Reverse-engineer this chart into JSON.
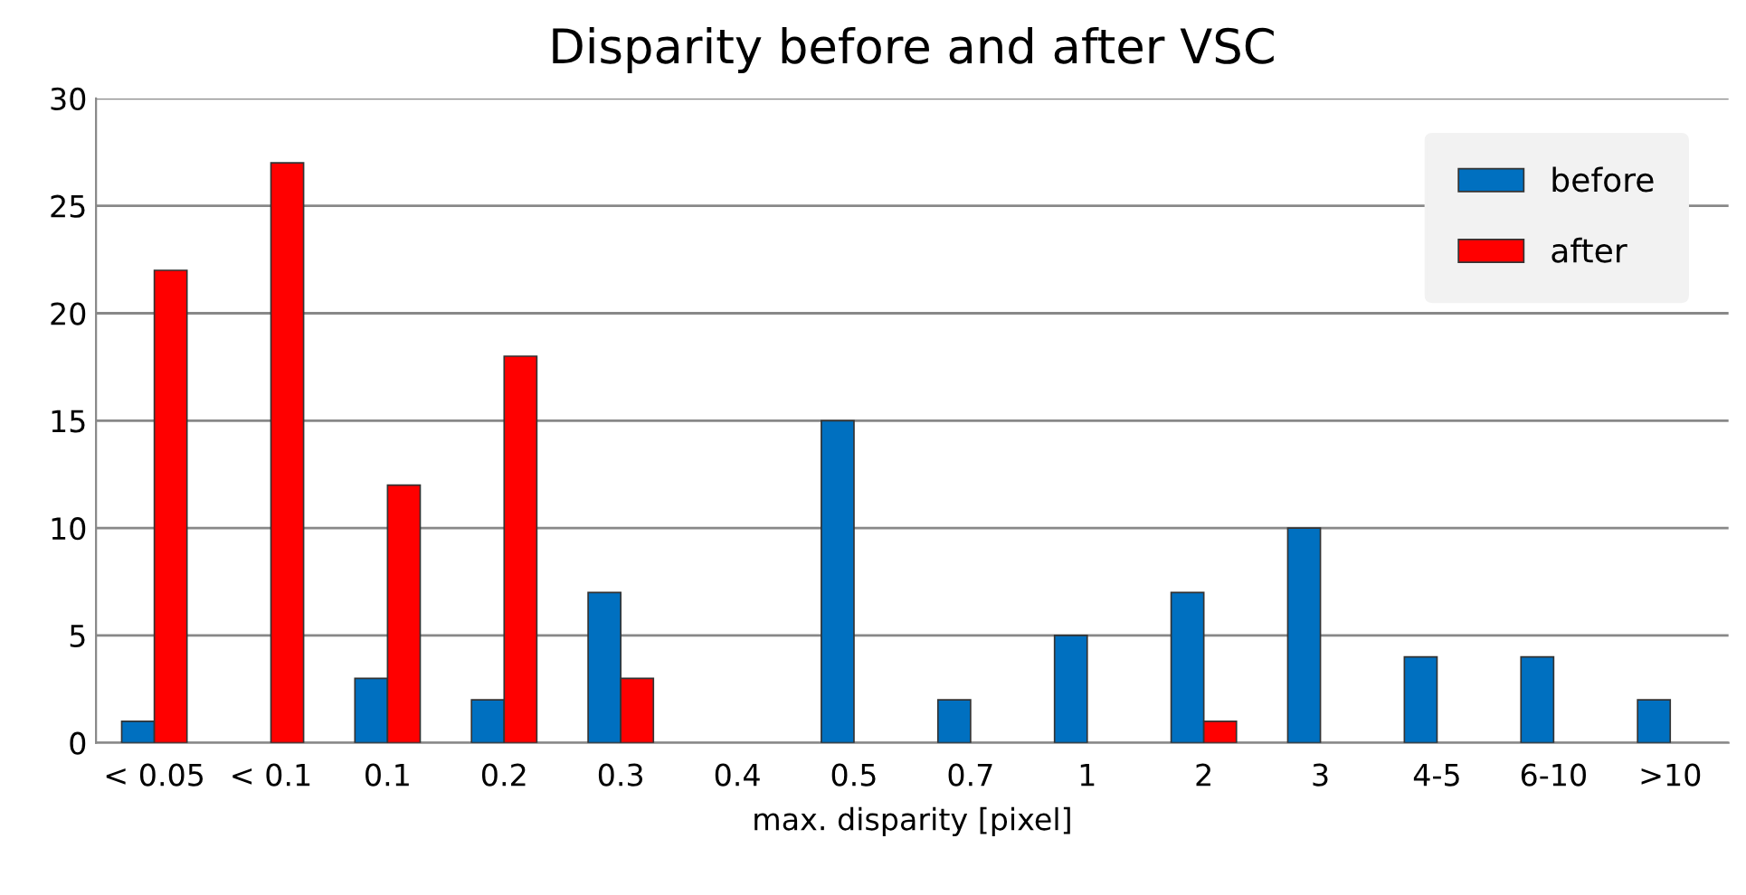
{
  "chart_data": {
    "type": "bar",
    "title": "Disparity before and after VSC",
    "xlabel": "max. disparity [pixel]",
    "categories": [
      "< 0.05",
      "< 0.1",
      "0.1",
      "0.2",
      "0.3",
      "0.4",
      "0.5",
      "0.7",
      "1",
      "2",
      "3",
      "4-5",
      "6-10",
      ">10"
    ],
    "series": [
      {
        "name": "before",
        "color": "#0070c0",
        "values": [
          1,
          0,
          3,
          2,
          7,
          0,
          15,
          2,
          5,
          7,
          10,
          4,
          4,
          2
        ]
      },
      {
        "name": "after",
        "color": "#ff0000",
        "values": [
          22,
          27,
          12,
          18,
          3,
          0,
          0,
          0,
          0,
          1,
          0,
          0,
          0,
          0
        ]
      }
    ],
    "ylim": [
      0,
      30
    ],
    "yticks": [
      0,
      5,
      10,
      15,
      20,
      25,
      30
    ],
    "grid": "y",
    "legend": "top right"
  }
}
